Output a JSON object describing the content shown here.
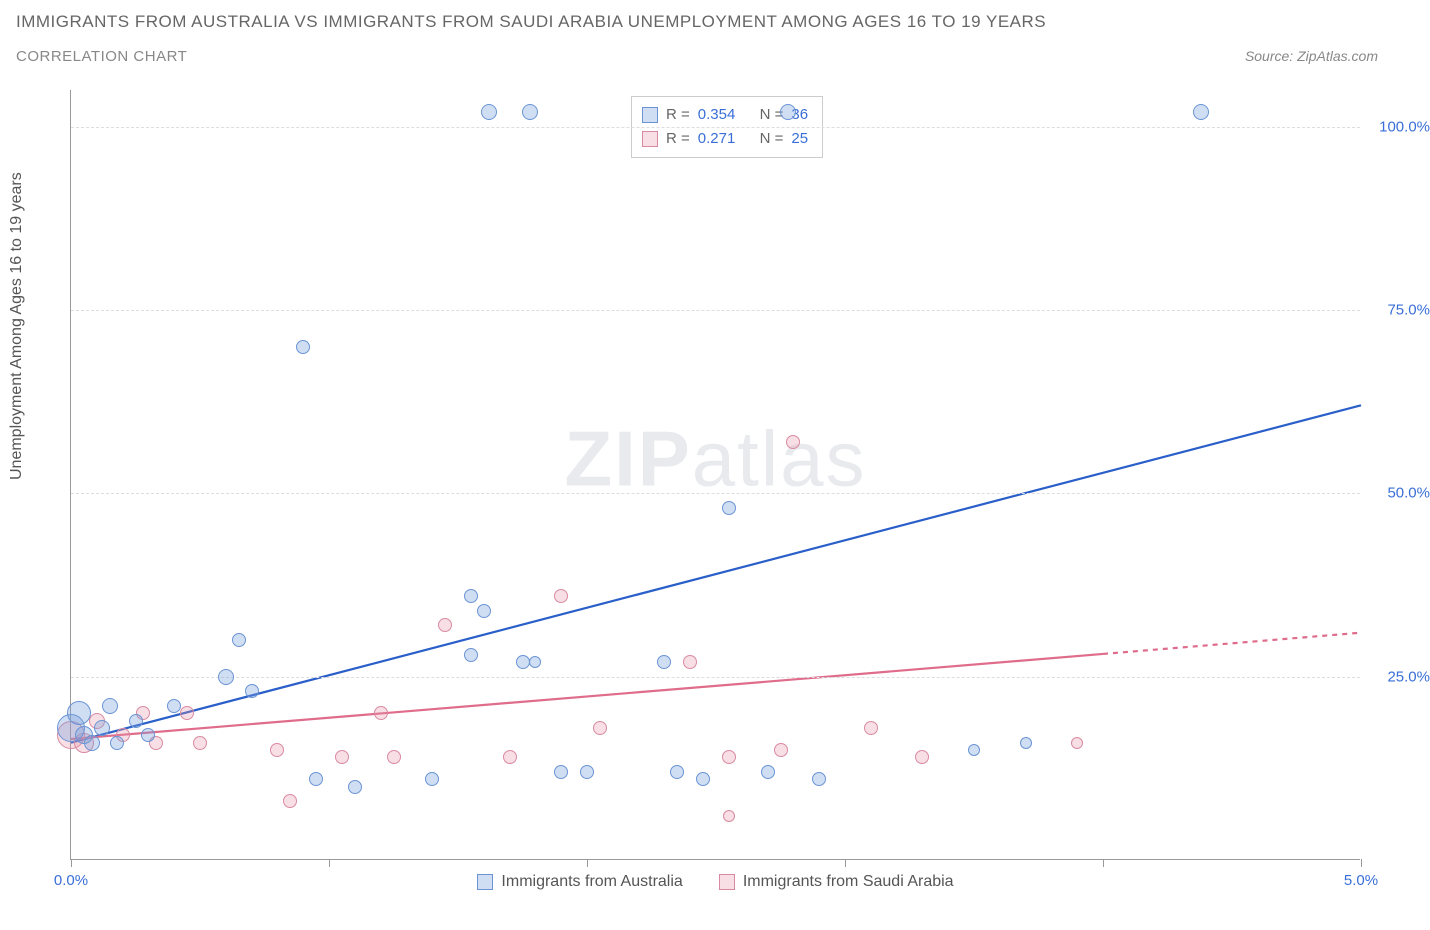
{
  "title_line1": "IMMIGRANTS FROM AUSTRALIA VS IMMIGRANTS FROM SAUDI ARABIA UNEMPLOYMENT AMONG AGES 16 TO 19 YEARS",
  "title_line2": "CORRELATION CHART",
  "source_text": "Source: ZipAtlas.com",
  "y_axis_label": "Unemployment Among Ages 16 to 19 years",
  "watermark_a": "ZIP",
  "watermark_b": "atlas",
  "colors": {
    "series_a_fill": "rgba(120,160,220,0.35)",
    "series_a_stroke": "#6a94d4",
    "series_a_line": "#2a5fc9",
    "series_b_fill": "rgba(230,150,170,0.30)",
    "series_b_stroke": "#d98aa0",
    "series_b_line": "#e06c8c",
    "axis_text": "#3a6fd8",
    "grid": "#dddddd"
  },
  "x_axis": {
    "min": 0.0,
    "max": 5.0,
    "ticks_at": [
      0.0,
      1.0,
      2.0,
      3.0,
      4.0,
      5.0
    ],
    "labels": {
      "0.0": "0.0%",
      "5.0": "5.0%"
    }
  },
  "y_axis": {
    "min": 0.0,
    "max": 105.0,
    "grid_at": [
      25.0,
      50.0,
      75.0,
      100.0
    ],
    "labels": {
      "25.0": "25.0%",
      "50.0": "50.0%",
      "75.0": "75.0%",
      "100.0": "100.0%"
    }
  },
  "stats": [
    {
      "series": "a",
      "r_label": "R =",
      "r": "0.354",
      "n_label": "N =",
      "n": "36"
    },
    {
      "series": "b",
      "r_label": "R =",
      "r": "0.271",
      "n_label": "N =",
      "n": "25"
    }
  ],
  "legend": {
    "a": "Immigrants from Australia",
    "b": "Immigrants from Saudi Arabia"
  },
  "trend_lines": {
    "a": {
      "x1": 0.0,
      "y1": 16.0,
      "x2": 5.0,
      "y2": 62.0,
      "dash_from_x": null
    },
    "b": {
      "x1": 0.0,
      "y1": 16.5,
      "x2": 5.0,
      "y2": 31.0,
      "dash_from_x": 4.0
    }
  },
  "points_a": [
    {
      "x": 0.0,
      "y": 18,
      "r": 14
    },
    {
      "x": 0.03,
      "y": 20,
      "r": 12
    },
    {
      "x": 0.05,
      "y": 17,
      "r": 9
    },
    {
      "x": 0.08,
      "y": 16,
      "r": 8
    },
    {
      "x": 0.12,
      "y": 18,
      "r": 8
    },
    {
      "x": 0.15,
      "y": 21,
      "r": 8
    },
    {
      "x": 0.18,
      "y": 16,
      "r": 7
    },
    {
      "x": 0.25,
      "y": 19,
      "r": 7
    },
    {
      "x": 0.3,
      "y": 17,
      "r": 7
    },
    {
      "x": 0.4,
      "y": 21,
      "r": 7
    },
    {
      "x": 0.6,
      "y": 25,
      "r": 8
    },
    {
      "x": 0.65,
      "y": 30,
      "r": 7
    },
    {
      "x": 0.7,
      "y": 23,
      "r": 7
    },
    {
      "x": 0.9,
      "y": 70,
      "r": 7
    },
    {
      "x": 0.95,
      "y": 11,
      "r": 7
    },
    {
      "x": 1.1,
      "y": 10,
      "r": 7
    },
    {
      "x": 1.4,
      "y": 11,
      "r": 7
    },
    {
      "x": 1.55,
      "y": 36,
      "r": 7
    },
    {
      "x": 1.55,
      "y": 28,
      "r": 7
    },
    {
      "x": 1.6,
      "y": 34,
      "r": 7
    },
    {
      "x": 1.62,
      "y": 102,
      "r": 8
    },
    {
      "x": 1.78,
      "y": 102,
      "r": 8
    },
    {
      "x": 1.75,
      "y": 27,
      "r": 7
    },
    {
      "x": 1.8,
      "y": 27,
      "r": 6
    },
    {
      "x": 1.9,
      "y": 12,
      "r": 7
    },
    {
      "x": 2.0,
      "y": 12,
      "r": 7
    },
    {
      "x": 2.3,
      "y": 27,
      "r": 7
    },
    {
      "x": 2.35,
      "y": 12,
      "r": 7
    },
    {
      "x": 2.45,
      "y": 11,
      "r": 7
    },
    {
      "x": 2.55,
      "y": 48,
      "r": 7
    },
    {
      "x": 2.78,
      "y": 102,
      "r": 8
    },
    {
      "x": 2.7,
      "y": 12,
      "r": 7
    },
    {
      "x": 2.9,
      "y": 11,
      "r": 7
    },
    {
      "x": 4.38,
      "y": 102,
      "r": 8
    },
    {
      "x": 3.5,
      "y": 15,
      "r": 6
    },
    {
      "x": 3.7,
      "y": 16,
      "r": 6
    }
  ],
  "points_b": [
    {
      "x": 0.0,
      "y": 17,
      "r": 14
    },
    {
      "x": 0.05,
      "y": 16,
      "r": 10
    },
    {
      "x": 0.1,
      "y": 19,
      "r": 8
    },
    {
      "x": 0.2,
      "y": 17,
      "r": 7
    },
    {
      "x": 0.28,
      "y": 20,
      "r": 7
    },
    {
      "x": 0.33,
      "y": 16,
      "r": 7
    },
    {
      "x": 0.45,
      "y": 20,
      "r": 7
    },
    {
      "x": 0.5,
      "y": 16,
      "r": 7
    },
    {
      "x": 0.8,
      "y": 15,
      "r": 7
    },
    {
      "x": 0.85,
      "y": 8,
      "r": 7
    },
    {
      "x": 1.05,
      "y": 14,
      "r": 7
    },
    {
      "x": 1.2,
      "y": 20,
      "r": 7
    },
    {
      "x": 1.25,
      "y": 14,
      "r": 7
    },
    {
      "x": 1.45,
      "y": 32,
      "r": 7
    },
    {
      "x": 1.7,
      "y": 14,
      "r": 7
    },
    {
      "x": 1.9,
      "y": 36,
      "r": 7
    },
    {
      "x": 2.05,
      "y": 18,
      "r": 7
    },
    {
      "x": 2.4,
      "y": 27,
      "r": 7
    },
    {
      "x": 2.55,
      "y": 14,
      "r": 7
    },
    {
      "x": 2.55,
      "y": 6,
      "r": 6
    },
    {
      "x": 2.75,
      "y": 15,
      "r": 7
    },
    {
      "x": 2.8,
      "y": 57,
      "r": 7
    },
    {
      "x": 3.1,
      "y": 18,
      "r": 7
    },
    {
      "x": 3.3,
      "y": 14,
      "r": 7
    },
    {
      "x": 3.9,
      "y": 16,
      "r": 6
    }
  ]
}
